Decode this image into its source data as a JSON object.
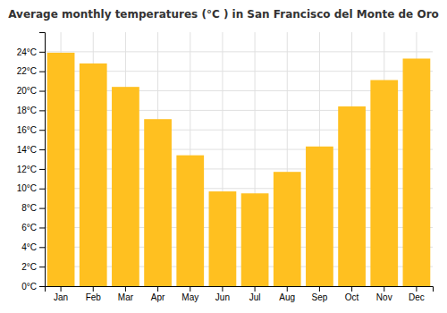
{
  "chart_data": {
    "type": "bar",
    "title": "Average monthly temperatures (°C ) in San Francisco del Monte de Oro",
    "categories": [
      "Jan",
      "Feb",
      "Mar",
      "Apr",
      "May",
      "Jun",
      "Jul",
      "Aug",
      "Sep",
      "Oct",
      "Nov",
      "Dec"
    ],
    "values": [
      23.9,
      22.8,
      20.4,
      17.1,
      13.4,
      9.7,
      9.5,
      11.7,
      14.3,
      18.4,
      21.1,
      23.3
    ],
    "color": "#FFC020",
    "ylim": [
      0,
      26
    ],
    "yticks": [
      {
        "value": 0,
        "label": "0°C"
      },
      {
        "value": 2,
        "label": "2°C"
      },
      {
        "value": 4,
        "label": "4°C"
      },
      {
        "value": 6,
        "label": "6°C"
      },
      {
        "value": 8,
        "label": "8°C"
      },
      {
        "value": 10,
        "label": "10°C"
      },
      {
        "value": 12,
        "label": "12°C"
      },
      {
        "value": 14,
        "label": "14°C"
      },
      {
        "value": 16,
        "label": "16°C"
      },
      {
        "value": 18,
        "label": "18°C"
      },
      {
        "value": 20,
        "label": "20°C"
      },
      {
        "value": 22,
        "label": "22°C"
      },
      {
        "value": 24,
        "label": "24°C"
      }
    ],
    "grid": true
  }
}
